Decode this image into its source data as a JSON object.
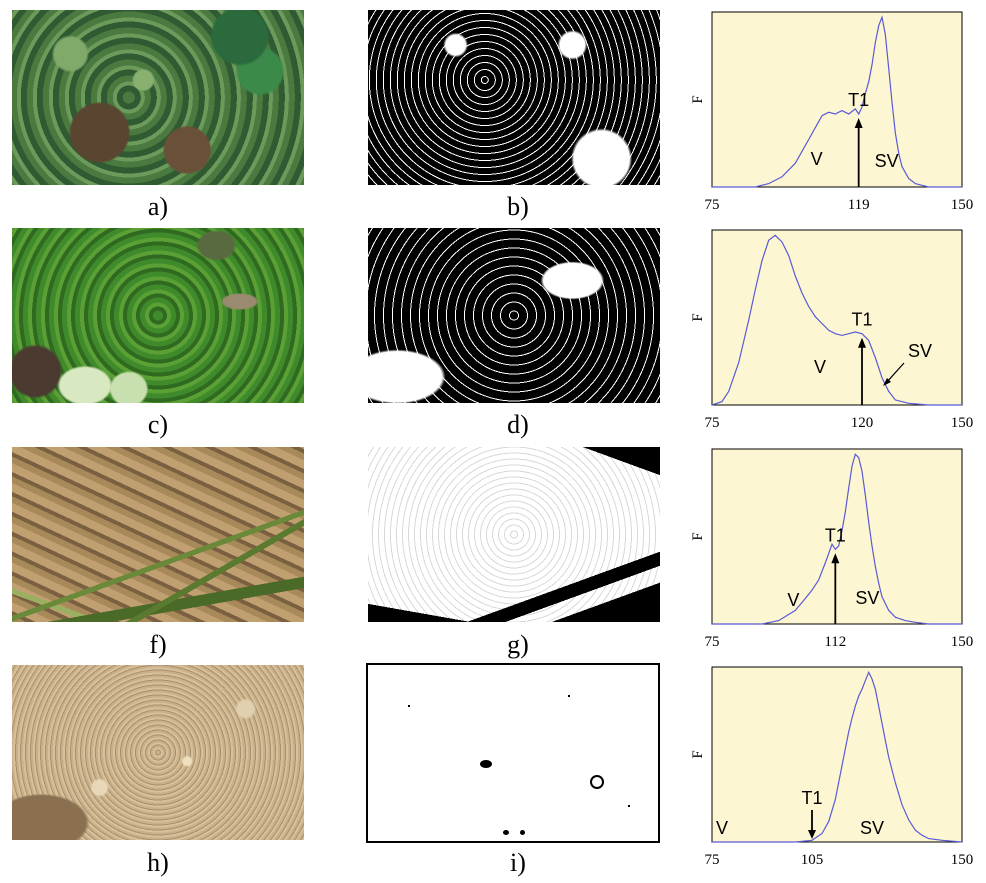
{
  "captions": [
    "a)",
    "b)",
    "c)",
    "d)",
    "f)",
    "g)",
    "h)",
    "i)"
  ],
  "chart_data": [
    {
      "type": "line",
      "ylabel": "F",
      "x_ticks": [
        "75",
        "119",
        "150"
      ],
      "x_range": [
        75,
        150
      ],
      "threshold": 119,
      "labels": {
        "threshold": "T1",
        "left": "V",
        "right": "SV"
      },
      "x": [
        75,
        88,
        92,
        96,
        100,
        104,
        108,
        110,
        112,
        114,
        116,
        118,
        119,
        120,
        121,
        122,
        123,
        124,
        125,
        126,
        127,
        128,
        129,
        130,
        131,
        132,
        134,
        136,
        138,
        140,
        144,
        150
      ],
      "y": [
        0.0,
        0.0,
        0.02,
        0.06,
        0.14,
        0.28,
        0.42,
        0.44,
        0.43,
        0.45,
        0.43,
        0.46,
        0.43,
        0.47,
        0.55,
        0.62,
        0.72,
        0.85,
        0.95,
        1.0,
        0.9,
        0.7,
        0.5,
        0.32,
        0.2,
        0.12,
        0.05,
        0.02,
        0.01,
        0.0,
        0.0,
        0.0
      ],
      "background": "#fdf6d2",
      "line_color": "#5a5ad8"
    },
    {
      "type": "line",
      "ylabel": "F",
      "x_ticks": [
        "75",
        "120",
        "150"
      ],
      "x_range": [
        75,
        150
      ],
      "threshold": 120,
      "labels": {
        "threshold": "T1",
        "left": "V",
        "right": "SV"
      },
      "x": [
        75,
        78,
        80,
        83,
        86,
        88,
        90,
        92,
        94,
        96,
        98,
        100,
        102,
        104,
        106,
        108,
        110,
        112,
        114,
        116,
        118,
        120,
        122,
        124,
        126,
        128,
        130,
        134,
        140,
        150
      ],
      "y": [
        0.0,
        0.02,
        0.08,
        0.25,
        0.5,
        0.68,
        0.85,
        0.97,
        1.0,
        0.96,
        0.88,
        0.76,
        0.66,
        0.58,
        0.52,
        0.48,
        0.44,
        0.42,
        0.41,
        0.42,
        0.43,
        0.42,
        0.38,
        0.28,
        0.16,
        0.08,
        0.03,
        0.01,
        0.0,
        0.0
      ],
      "background": "#fdf6d2",
      "line_color": "#5a5ad8"
    },
    {
      "type": "line",
      "ylabel": "F",
      "x_ticks": [
        "75",
        "112",
        "150"
      ],
      "x_range": [
        75,
        150
      ],
      "threshold": 112,
      "labels": {
        "threshold": "T1",
        "left": "V",
        "right": "SV"
      },
      "x": [
        75,
        90,
        95,
        100,
        103,
        105,
        107,
        109,
        111,
        112,
        113,
        114,
        115,
        116,
        117,
        118,
        119,
        120,
        121,
        122,
        123,
        124,
        125,
        126,
        128,
        130,
        133,
        136,
        140,
        150
      ],
      "y": [
        0.0,
        0.0,
        0.02,
        0.08,
        0.15,
        0.2,
        0.26,
        0.36,
        0.47,
        0.44,
        0.46,
        0.55,
        0.66,
        0.8,
        0.93,
        1.0,
        0.98,
        0.9,
        0.76,
        0.6,
        0.46,
        0.34,
        0.24,
        0.16,
        0.08,
        0.04,
        0.02,
        0.01,
        0.0,
        0.0
      ],
      "background": "#fdf6d2",
      "line_color": "#5a5ad8"
    },
    {
      "type": "line",
      "ylabel": "F",
      "x_ticks": [
        "75",
        "105",
        "150"
      ],
      "x_range": [
        75,
        150
      ],
      "threshold": 105,
      "labels": {
        "threshold": "T1",
        "left": "V",
        "right": "SV"
      },
      "x": [
        75,
        100,
        105,
        108,
        110,
        112,
        114,
        116,
        117,
        118,
        119,
        120,
        121,
        122,
        123,
        124,
        125,
        126,
        127,
        128,
        130,
        132,
        134,
        136,
        138,
        140,
        144,
        150
      ],
      "y": [
        0.0,
        0.0,
        0.01,
        0.05,
        0.12,
        0.25,
        0.45,
        0.65,
        0.73,
        0.8,
        0.86,
        0.9,
        0.95,
        1.0,
        0.96,
        0.9,
        0.8,
        0.7,
        0.6,
        0.5,
        0.35,
        0.22,
        0.13,
        0.07,
        0.04,
        0.02,
        0.01,
        0.0
      ],
      "background": "#fdf6d2",
      "line_color": "#5a5ad8"
    }
  ]
}
